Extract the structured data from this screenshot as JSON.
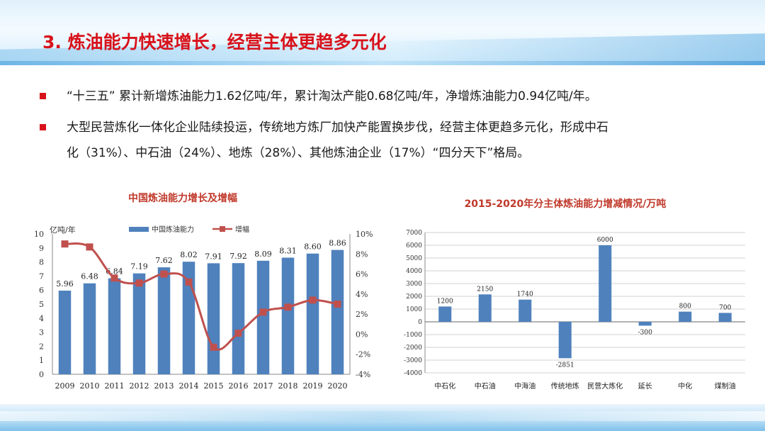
{
  "slide": {
    "title": "3. 炼油能力快速增长，经营主体更趋多元化",
    "bullets": [
      "“十三五”  累计新增炼油能力1.62亿吨/年，累计淘汰产能0.68亿吨/年，净增炼油能力0.94亿吨/年。",
      "大型民营炼化一体化企业陆续投运，传统地方炼厂加快产能置换步伐，经营主体更趋多元化，形成中石",
      "化（31%）、中石油（24%）、地炼（28%）、其他炼油企业（17%）“四分天下”格局。"
    ]
  },
  "colors": {
    "bar": "#4f81bd",
    "line": "#c0504d",
    "title_red": "#d8121b",
    "chart_title": "#c0392b"
  },
  "chart_data": [
    {
      "type": "bar+line",
      "title": "中国炼油能力增长及增幅",
      "y_unit_label": "亿吨/年",
      "categories": [
        "2009",
        "2010",
        "2011",
        "2012",
        "2013",
        "2014",
        "2015",
        "2016",
        "2017",
        "2018",
        "2019",
        "2020"
      ],
      "series": [
        {
          "name": "中国炼油能力",
          "type": "bar",
          "axis": "left",
          "values": [
            5.96,
            6.48,
            6.84,
            7.19,
            7.62,
            8.02,
            7.91,
            7.92,
            8.09,
            8.31,
            8.6,
            8.86
          ],
          "labels": [
            "5.96",
            "6.48",
            "6.84",
            "7.19",
            "7.62",
            "8.02",
            "7.91",
            "7.92",
            "8.09",
            "8.31",
            "8.60",
            "8.86"
          ]
        },
        {
          "name": "增幅",
          "type": "line",
          "axis": "right",
          "values": [
            9.0,
            8.7,
            5.6,
            5.1,
            6.0,
            5.2,
            -1.3,
            0.1,
            2.2,
            2.7,
            3.4,
            3.0
          ]
        }
      ],
      "ylim_left": [
        0,
        10
      ],
      "yticks_left": [
        "0",
        "1",
        "2",
        "3",
        "4",
        "5",
        "6",
        "7",
        "8",
        "9",
        "10"
      ],
      "ylim_right": [
        -4,
        10
      ],
      "yticks_right": [
        "-4%",
        "-2%",
        "0%",
        "2%",
        "4%",
        "6%",
        "8%",
        "10%"
      ],
      "legend_position": "top"
    },
    {
      "type": "bar",
      "title": "2015-2020年分主体炼油能力增减情况/万吨",
      "categories": [
        "中石化",
        "中石油",
        "中海油",
        "传统地炼",
        "民营大炼化",
        "延长",
        "中化",
        "煤制油"
      ],
      "values": [
        1200,
        2150,
        1740,
        -2851,
        6000,
        -300,
        800,
        700
      ],
      "labels": [
        "1200",
        "2150",
        "1740",
        "-2851",
        "6000",
        "-300",
        "800",
        "700"
      ],
      "ylim": [
        -4000,
        7000
      ],
      "yticks": [
        "-4000",
        "-3000",
        "-2000",
        "-1000",
        "0",
        "1000",
        "2000",
        "3000",
        "4000",
        "5000",
        "6000",
        "7000"
      ],
      "grid": true
    }
  ]
}
